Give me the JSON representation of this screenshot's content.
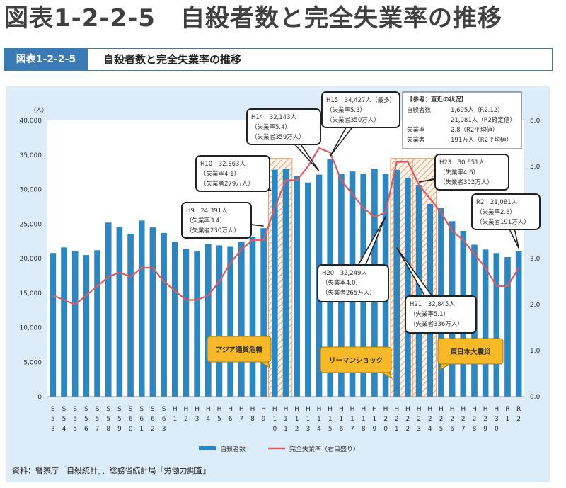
{
  "heading": "図表1-2-2-5　自殺者数と完全失業率の推移",
  "title_tag": "図表1-2-2-5",
  "title_text": "自殺者数と完全失業率の推移",
  "source": "資料：警察庁「自殺統計」、総務省統計局「労働力調査」",
  "colors": {
    "bar": "#2e86c1",
    "line": "#e05a60",
    "tag": "#3a7ab5",
    "panel": "#dcecf8",
    "event_box": "#f7b928",
    "hatch": "#f0a070"
  },
  "chart_data": {
    "type": "bar",
    "left_axis_unit": "（人）",
    "y_ticks": [
      "0",
      "5,000",
      "10,000",
      "15,000",
      "20,000",
      "25,000",
      "30,000",
      "35,000",
      "40,000"
    ],
    "ylim": [
      0,
      40000
    ],
    "y2_ticks": [
      "0.0",
      "1.0",
      "2.0",
      "3.0",
      "4.0",
      "5.0",
      "6.0"
    ],
    "y2lim": [
      0,
      6
    ],
    "categories": [
      [
        "S",
        "5",
        "3"
      ],
      [
        "S",
        "5",
        "4"
      ],
      [
        "S",
        "5",
        "5"
      ],
      [
        "S",
        "5",
        "6"
      ],
      [
        "S",
        "5",
        "7"
      ],
      [
        "S",
        "5",
        "8"
      ],
      [
        "S",
        "5",
        "9"
      ],
      [
        "S",
        "6",
        "0"
      ],
      [
        "S",
        "6",
        "1"
      ],
      [
        "S",
        "6",
        "2"
      ],
      [
        "S",
        "6",
        "3"
      ],
      [
        "H",
        "1"
      ],
      [
        "H",
        "2"
      ],
      [
        "H",
        "3"
      ],
      [
        "H",
        "4"
      ],
      [
        "H",
        "5"
      ],
      [
        "H",
        "6"
      ],
      [
        "H",
        "7"
      ],
      [
        "H",
        "8"
      ],
      [
        "H",
        "9"
      ],
      [
        "H",
        "1",
        "0"
      ],
      [
        "H",
        "1",
        "1"
      ],
      [
        "H",
        "1",
        "2"
      ],
      [
        "H",
        "1",
        "3"
      ],
      [
        "H",
        "1",
        "4"
      ],
      [
        "H",
        "1",
        "5"
      ],
      [
        "H",
        "1",
        "6"
      ],
      [
        "H",
        "1",
        "7"
      ],
      [
        "H",
        "1",
        "8"
      ],
      [
        "H",
        "1",
        "9"
      ],
      [
        "H",
        "2",
        "0"
      ],
      [
        "H",
        "2",
        "1"
      ],
      [
        "H",
        "2",
        "2"
      ],
      [
        "H",
        "2",
        "3"
      ],
      [
        "H",
        "2",
        "4"
      ],
      [
        "H",
        "2",
        "5"
      ],
      [
        "H",
        "2",
        "6"
      ],
      [
        "H",
        "2",
        "7"
      ],
      [
        "H",
        "2",
        "8"
      ],
      [
        "H",
        "2",
        "9"
      ],
      [
        "H",
        "3",
        "0"
      ],
      [
        "R",
        "1"
      ],
      [
        "R",
        "2"
      ]
    ],
    "series": [
      {
        "name": "自殺者数",
        "type": "bar",
        "axis": "left",
        "values": [
          20800,
          21600,
          21100,
          20500,
          21200,
          25200,
          24600,
          23600,
          25500,
          24500,
          23700,
          22400,
          21400,
          21100,
          22100,
          21900,
          21700,
          22400,
          23100,
          24391,
          32863,
          33000,
          31900,
          31000,
          32143,
          34427,
          32300,
          32600,
          32200,
          33000,
          32249,
          32845,
          31700,
          30651,
          27900,
          27300,
          25400,
          24000,
          22000,
          21300,
          20800,
          20200,
          21081
        ]
      },
      {
        "name": "完全失業率（右目盛り）",
        "type": "line",
        "axis": "right",
        "values": [
          2.2,
          2.1,
          2.0,
          2.2,
          2.4,
          2.6,
          2.7,
          2.6,
          2.8,
          2.8,
          2.5,
          2.3,
          2.1,
          2.1,
          2.2,
          2.5,
          2.9,
          3.2,
          3.4,
          3.4,
          4.1,
          4.7,
          4.7,
          5.0,
          5.4,
          5.3,
          4.7,
          4.4,
          4.1,
          3.9,
          4.0,
          5.1,
          5.1,
          4.6,
          4.3,
          4.0,
          3.6,
          3.4,
          3.1,
          2.8,
          2.4,
          2.4,
          2.8
        ]
      }
    ],
    "hatched_periods": [
      20,
      31,
      33
    ],
    "callouts": [
      {
        "lines": [
          "H9　24,391人",
          "（失業率3.4）",
          "（失業者230万人）"
        ]
      },
      {
        "lines": [
          "H10　32,863人",
          "（失業率4.1）",
          "（失業者279万人）"
        ]
      },
      {
        "lines": [
          "H14　32,143人",
          "（失業率5.4）",
          "（失業者359万人）"
        ]
      },
      {
        "lines": [
          "H15　34,427人（最多）",
          "（失業率5.3）",
          "（失業者350万人）"
        ]
      },
      {
        "lines": [
          "H20　32,249人",
          "（失業率4.0）",
          "（失業者265万人）"
        ]
      },
      {
        "lines": [
          "H21　32,845人",
          "（失業率5.1）",
          "（失業者336万人）"
        ]
      },
      {
        "lines": [
          "H23　30,651人",
          "（失業率4.6）",
          "（失業者302万人）"
        ]
      },
      {
        "lines": [
          "R2　21,081人",
          "（失業率2.8）",
          "（失業者191万人）"
        ]
      }
    ],
    "reference": {
      "title": "【参考：直近の状況】",
      "rows": [
        [
          "自殺者数",
          "1,695人（R2.12）"
        ],
        [
          "",
          "21,081人（R2確定値）"
        ],
        [
          "失業率",
          "2.8（R2平均値）"
        ],
        [
          "失業者",
          "191万人（R2平均値）"
        ]
      ]
    },
    "events": [
      "アジア通貨危機",
      "リーマンショック",
      "東日本大震災"
    ],
    "legend": [
      "自殺者数",
      "完全失業率（右目盛り）"
    ]
  }
}
